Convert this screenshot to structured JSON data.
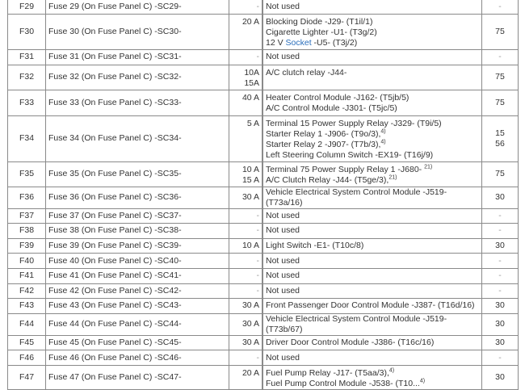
{
  "rows": [
    {
      "id": "F29",
      "name": "Fuse 29 (On Fuse Panel C) -SC29-",
      "amps": [
        "-"
      ],
      "desc": [
        {
          "t": "Not used"
        }
      ],
      "term": [
        "-"
      ]
    },
    {
      "id": "F30",
      "name": "Fuse 30 (On Fuse Panel C) -SC30-",
      "amps": [
        "20 A"
      ],
      "desc": [
        {
          "t": "Blocking Diode -J29- (T1il/1)"
        },
        {
          "t": "Cigarette Lighter -U1- (T3g/2)"
        },
        {
          "pre": "12 V ",
          "link": "Socket",
          "t": " -U5- (T3j/2)"
        }
      ],
      "term": [
        "75"
      ]
    },
    {
      "id": "F31",
      "name": "Fuse 31 (On Fuse Panel C) -SC31-",
      "amps": [
        "-"
      ],
      "desc": [
        {
          "t": "Not used"
        }
      ],
      "term": [
        "-"
      ]
    },
    {
      "id": "F32",
      "name": "Fuse 32 (On Fuse Panel C) -SC32-",
      "amps": [
        "10A",
        "15A"
      ],
      "desc": [
        {
          "t": "A/C clutch relay -J44-"
        }
      ],
      "term": [
        "75"
      ]
    },
    {
      "id": "F33",
      "name": "Fuse 33 (On Fuse Panel C) -SC33-",
      "amps": [
        "40 A"
      ],
      "desc": [
        {
          "t": "Heater Control Module -J162- (T5jb/5)"
        },
        {
          "t": "A/C Control Module -J301- (T5jc/5)"
        }
      ],
      "term": [
        "75"
      ]
    },
    {
      "id": "F34",
      "name": "Fuse 34 (On Fuse Panel C) -SC34-",
      "amps": [
        "5 A"
      ],
      "desc": [
        {
          "t": "Terminal 15 Power Supply Relay -J329- (T9i/5)"
        },
        {
          "t": "Starter Relay 1 -J906- (T9o/3),",
          "sup": "4)"
        },
        {
          "t": "Starter Relay 2 -J907- (T7b/3),",
          "sup": "4)"
        },
        {
          "t": "Left Steering Column Switch -EX19- (T16j/9)"
        }
      ],
      "term": [
        "15",
        "56"
      ]
    },
    {
      "id": "F35",
      "name": "Fuse 35 (On Fuse Panel C) -SC35-",
      "amps": [
        "10 A",
        "15 A"
      ],
      "desc": [
        {
          "t": "Terminal 75 Power Supply Relay 1 -J680- ",
          "sup": "21)"
        },
        {
          "t": "A/C Clutch Relay -J44- (T5ge/3),",
          "sup": "21)"
        }
      ],
      "term": [
        "75"
      ]
    },
    {
      "id": "F36",
      "name": "Fuse 36 (On Fuse Panel C) -SC36-",
      "amps": [
        "30 A"
      ],
      "desc": [
        {
          "t": "Vehicle Electrical System Control Module -J519- (T73a/16)"
        }
      ],
      "term": [
        "30"
      ]
    },
    {
      "id": "F37",
      "name": "Fuse 37 (On Fuse Panel C) -SC37-",
      "amps": [
        "-"
      ],
      "desc": [
        {
          "t": "Not used"
        }
      ],
      "term": [
        "-"
      ]
    },
    {
      "id": "F38",
      "name": "Fuse 38 (On Fuse Panel C) -SC38-",
      "amps": [
        "-"
      ],
      "desc": [
        {
          "t": "Not used"
        }
      ],
      "term": [
        "-"
      ]
    },
    {
      "id": "F39",
      "name": "Fuse 39 (On Fuse Panel C) -SC39-",
      "amps": [
        "10 A"
      ],
      "desc": [
        {
          "t": "Light Switch -E1- (T10c/8)"
        }
      ],
      "term": [
        "30"
      ]
    },
    {
      "id": "F40",
      "name": "Fuse 40 (On Fuse Panel C) -SC40-",
      "amps": [
        "-"
      ],
      "desc": [
        {
          "t": "Not used"
        }
      ],
      "term": [
        "-"
      ]
    },
    {
      "id": "F41",
      "name": "Fuse 41 (On Fuse Panel C) -SC41-",
      "amps": [
        "-"
      ],
      "desc": [
        {
          "t": "Not used"
        }
      ],
      "term": [
        "-"
      ]
    },
    {
      "id": "F42",
      "name": "Fuse 42 (On Fuse Panel C) -SC42-",
      "amps": [
        "-"
      ],
      "desc": [
        {
          "t": "Not used"
        }
      ],
      "term": [
        "-"
      ]
    },
    {
      "id": "F43",
      "name": "Fuse 43 (On Fuse Panel C) -SC43-",
      "amps": [
        "30 A"
      ],
      "desc": [
        {
          "t": "Front Passenger Door Control Module -J387- (T16d/16)"
        }
      ],
      "term": [
        "30"
      ]
    },
    {
      "id": "F44",
      "name": "Fuse 44 (On Fuse Panel C) -SC44-",
      "amps": [
        "30 A"
      ],
      "desc": [
        {
          "t": "Vehicle Electrical System Control Module -J519- (T73b/67)"
        }
      ],
      "term": [
        "30"
      ]
    },
    {
      "id": "F45",
      "name": "Fuse 45 (On Fuse Panel C) -SC45-",
      "amps": [
        "30 A"
      ],
      "desc": [
        {
          "t": "Driver Door Control Module -J386- (T16c/16)"
        }
      ],
      "term": [
        "30"
      ]
    },
    {
      "id": "F46",
      "name": "Fuse 46 (On Fuse Panel C) -SC46-",
      "amps": [
        "-"
      ],
      "desc": [
        {
          "t": "Not used"
        }
      ],
      "term": [
        "-"
      ]
    },
    {
      "id": "F47",
      "name": "Fuse 47 (On Fuse Panel C) -SC47-",
      "amps": [
        "20 A"
      ],
      "desc": [
        {
          "t": "Fuel Pump Relay -J17- (T5aa/3),",
          "sup": "4)"
        },
        {
          "t": "Fuel Pump Control Module -J538- (T10...",
          "sup": "4)"
        }
      ],
      "term": [
        "30"
      ]
    }
  ]
}
